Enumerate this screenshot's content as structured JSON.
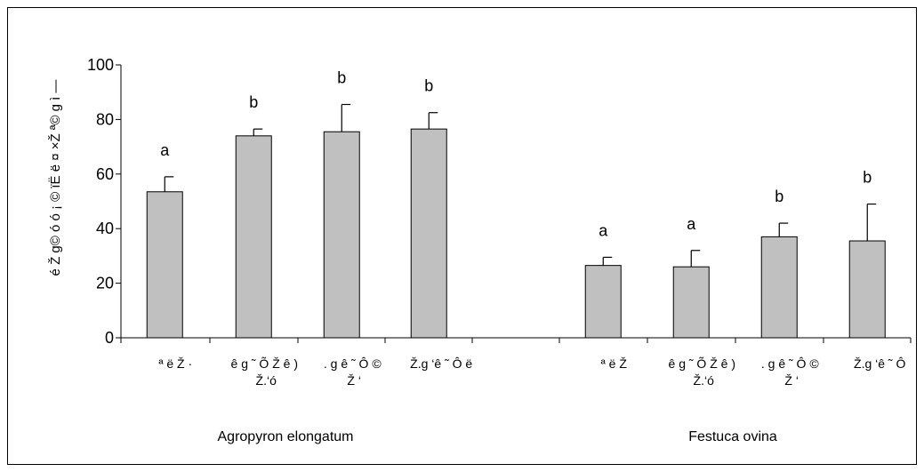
{
  "chart_data": {
    "type": "bar",
    "title": "",
    "ylabel": "é Ž­ g© ó ó ¡ © ïË ë ¤ ×Ž ª© g ì —",
    "ylim": [
      0,
      100
    ],
    "yticks": [
      0,
      20,
      40,
      60,
      80,
      100
    ],
    "bar_color": "#c0c0c0",
    "groups": [
      {
        "name": "Agropyron elongatum",
        "bars": [
          {
            "label_lines": [
              "ª ë Ž ·"
            ],
            "value": 53.5,
            "error": 5.5,
            "letter": "a"
          },
          {
            "label_lines": [
              "ê g ˜ Õ Ž ê )",
              "­ Ž.‘ó"
            ],
            "value": 74,
            "error": 2.5,
            "letter": "b"
          },
          {
            "label_lines": [
              ". g ê ˜ Ô ©",
              "­ Ž ‘"
            ],
            "value": 75.5,
            "error": 10,
            "letter": "b"
          },
          {
            "label_lines": [
              "­ Ž.g ‘ê ˜ Ô ë"
            ],
            "value": 76.5,
            "error": 6,
            "letter": "b"
          }
        ]
      },
      {
        "name": "Festuca ovina",
        "bars": [
          {
            "label_lines": [
              "ª ë Ž"
            ],
            "value": 26.5,
            "error": 3,
            "letter": "a"
          },
          {
            "label_lines": [
              "ê g ˜ Õ Ž ê )",
              "­ Ž.‘ó"
            ],
            "value": 26,
            "error": 6,
            "letter": "a"
          },
          {
            "label_lines": [
              ". g ê ˜ Ô ©",
              "­ Ž ‘"
            ],
            "value": 37,
            "error": 5,
            "letter": "b"
          },
          {
            "label_lines": [
              "­ Ž.g ‘ê ˜ Ô"
            ],
            "value": 35.5,
            "error": 13.5,
            "letter": "b"
          }
        ]
      }
    ]
  }
}
